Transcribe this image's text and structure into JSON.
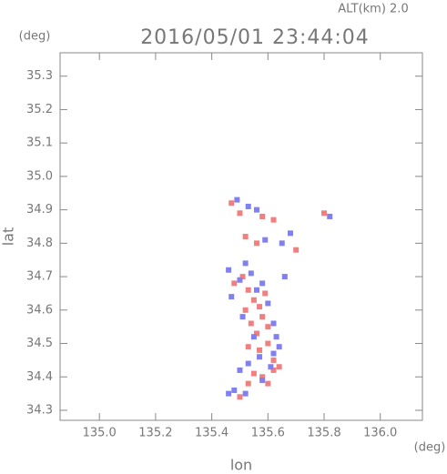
{
  "chart_data": {
    "type": "scatter",
    "title": "2016/05/01 23:44:04",
    "subtitle": "ALT(km) 2.0",
    "x_label": "lon",
    "y_label": "lat",
    "x_unit": "(deg)",
    "y_unit": "(deg)",
    "xlim": [
      134.86,
      136.15
    ],
    "ylim": [
      34.27,
      35.37
    ],
    "xticks": [
      {
        "value": 135.0,
        "label": "135.0"
      },
      135.2,
      135.4,
      135.6,
      135.8,
      {
        "value": 136.0,
        "label": "136.0"
      }
    ],
    "yticks": [
      34.3,
      34.4,
      34.5,
      34.6,
      34.7,
      34.8,
      34.9,
      {
        "value": 35.0,
        "label": "35.0"
      },
      35.1,
      35.2,
      35.3
    ],
    "series": [
      {
        "color": "#f08080",
        "x": [
          135.47,
          135.5,
          135.58,
          135.62,
          135.8,
          135.52,
          135.7,
          135.56,
          135.48,
          135.53,
          135.55,
          135.57,
          135.52,
          135.58,
          135.54,
          135.6,
          135.56,
          135.53,
          135.57,
          135.6,
          135.62,
          135.64,
          135.58,
          135.55,
          135.6,
          135.53,
          135.5,
          135.62,
          135.51,
          135.59
        ],
        "y": [
          34.92,
          34.89,
          34.88,
          34.87,
          34.89,
          34.82,
          34.78,
          34.8,
          34.68,
          34.66,
          34.63,
          34.61,
          34.6,
          34.58,
          34.56,
          34.55,
          34.53,
          34.49,
          34.48,
          34.5,
          34.42,
          34.43,
          34.4,
          34.41,
          34.38,
          34.38,
          34.34,
          34.45,
          34.7,
          34.65
        ]
      },
      {
        "color": "#8080f0",
        "x": [
          135.49,
          135.53,
          135.56,
          135.82,
          135.59,
          135.65,
          135.68,
          135.46,
          135.5,
          135.54,
          135.58,
          135.56,
          135.47,
          135.6,
          135.51,
          135.62,
          135.55,
          135.62,
          135.64,
          135.57,
          135.5,
          135.53,
          135.61,
          135.48,
          135.52,
          135.58,
          135.46,
          135.63,
          135.52,
          135.66
        ],
        "y": [
          34.93,
          34.91,
          34.9,
          34.88,
          34.81,
          34.8,
          34.83,
          34.72,
          34.69,
          34.71,
          34.68,
          34.66,
          34.64,
          34.62,
          34.58,
          34.56,
          34.52,
          34.47,
          34.49,
          34.46,
          34.42,
          34.44,
          34.43,
          34.36,
          34.35,
          34.39,
          34.35,
          34.52,
          34.74,
          34.7
        ]
      }
    ]
  }
}
